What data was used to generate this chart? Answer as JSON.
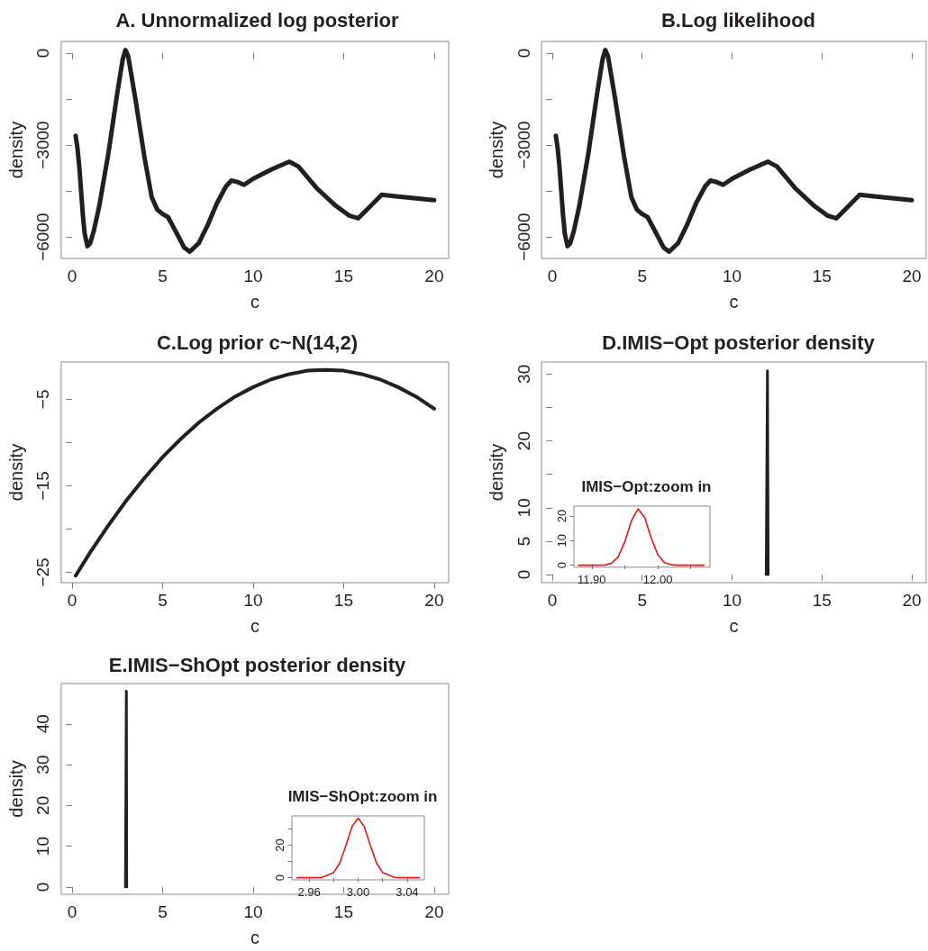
{
  "chart_data": [
    {
      "type": "line",
      "title": "A. Unnormalized log posterior",
      "xlabel": "c",
      "ylabel": "density",
      "marker": "none",
      "x": [
        0.2,
        0.3,
        0.4,
        0.5,
        0.6,
        0.7,
        0.85,
        1.0,
        1.2,
        1.5,
        2.0,
        2.5,
        2.8,
        2.95,
        3.1,
        3.5,
        4.0,
        4.4,
        4.7,
        5.0,
        5.3,
        5.8,
        6.2,
        6.5,
        7.0,
        7.5,
        8.0,
        8.5,
        8.8,
        9.1,
        9.5,
        10,
        11,
        12,
        12.5,
        13.5,
        14.5,
        15.3,
        15.8,
        16.3,
        17.1,
        18,
        19,
        20
      ],
      "series": [
        {
          "color": "#231f20",
          "values": [
            -2700,
            -3100,
            -3700,
            -4500,
            -5300,
            -5900,
            -6300,
            -6200,
            -5800,
            -5000,
            -3300,
            -1300,
            -200,
            100,
            -100,
            -1500,
            -3400,
            -4700,
            -5100,
            -5250,
            -5350,
            -5900,
            -6350,
            -6480,
            -6200,
            -5600,
            -4900,
            -4350,
            -4160,
            -4200,
            -4300,
            -4100,
            -3800,
            -3540,
            -3700,
            -4400,
            -4950,
            -5300,
            -5390,
            -5100,
            -4620,
            -4680,
            -4740,
            -4800
          ]
        }
      ],
      "xlim": [
        -0.6,
        20.8
      ],
      "xticks": [
        0,
        5,
        10,
        15,
        20
      ],
      "ylim": [
        -6700,
        380
      ],
      "yticks": [
        {
          "value": -6000,
          "label": "−6000"
        },
        {
          "value": -4500,
          "label": null
        },
        {
          "value": -3000,
          "label": "−3000"
        },
        {
          "value": -1500,
          "label": null
        },
        0
      ]
    },
    {
      "type": "line",
      "title": "B.Log likelihood",
      "xlabel": "c",
      "ylabel": "density",
      "marker": "none",
      "x": [
        0.2,
        0.3,
        0.4,
        0.5,
        0.6,
        0.7,
        0.85,
        1.0,
        1.2,
        1.5,
        2.0,
        2.5,
        2.8,
        2.95,
        3.1,
        3.5,
        4.0,
        4.4,
        4.7,
        5.0,
        5.3,
        5.8,
        6.2,
        6.5,
        7.0,
        7.5,
        8.0,
        8.5,
        8.8,
        9.1,
        9.5,
        10,
        11,
        12,
        12.5,
        13.5,
        14.5,
        15.3,
        15.8,
        16.3,
        17.1,
        18,
        19,
        20
      ],
      "series": [
        {
          "color": "#231f20",
          "values": [
            -2700,
            -3100,
            -3700,
            -4500,
            -5300,
            -5900,
            -6300,
            -6200,
            -5800,
            -5000,
            -3300,
            -1300,
            -200,
            100,
            -100,
            -1500,
            -3400,
            -4700,
            -5100,
            -5250,
            -5350,
            -5900,
            -6350,
            -6480,
            -6200,
            -5600,
            -4900,
            -4350,
            -4160,
            -4200,
            -4300,
            -4100,
            -3800,
            -3540,
            -3700,
            -4400,
            -4950,
            -5300,
            -5390,
            -5100,
            -4620,
            -4680,
            -4740,
            -4800
          ]
        }
      ],
      "xlim": [
        -0.6,
        20.8
      ],
      "xticks": [
        0,
        5,
        10,
        15,
        20
      ],
      "ylim": [
        -6700,
        380
      ],
      "yticks": [
        {
          "value": -6000,
          "label": "−6000"
        },
        {
          "value": -4500,
          "label": null
        },
        {
          "value": -3000,
          "label": "−3000"
        },
        {
          "value": -1500,
          "label": null
        },
        0
      ]
    },
    {
      "type": "line",
      "title": "C.Log prior c~N(14,2)",
      "xlabel": "c",
      "ylabel": "density",
      "marker": "none",
      "x": [
        0.2,
        1,
        2,
        3,
        4,
        5,
        6,
        7,
        8,
        9,
        10,
        11,
        12,
        13,
        14,
        15,
        16,
        17,
        18,
        19,
        20
      ],
      "series": [
        {
          "color": "#231f20",
          "values": [
            -25.4,
            -22.7,
            -19.6,
            -16.7,
            -14.1,
            -11.7,
            -9.6,
            -7.7,
            -6.1,
            -4.7,
            -3.6,
            -2.7,
            -2.1,
            -1.7,
            -1.6,
            -1.7,
            -2.1,
            -2.7,
            -3.6,
            -4.7,
            -6.1
          ]
        }
      ],
      "xlim": [
        -0.6,
        20.8
      ],
      "xticks": [
        0,
        5,
        10,
        15,
        20
      ],
      "ylim": [
        -26.2,
        -0.7
      ],
      "yticks": [
        {
          "value": -25,
          "label": "−25"
        },
        {
          "value": -20,
          "label": null
        },
        {
          "value": -15,
          "label": "−15"
        },
        {
          "value": -10,
          "label": null
        },
        {
          "value": -5,
          "label": "−5"
        }
      ]
    },
    {
      "type": "line",
      "title": "D.IMIS−Opt posterior density",
      "xlabel": "c",
      "ylabel": "density",
      "marker": "none",
      "x": [
        11.9,
        11.93,
        11.97,
        12.01,
        12.04
      ],
      "series": [
        {
          "color": "#231f20",
          "values": [
            0,
            0,
            30.5,
            0,
            0
          ]
        }
      ],
      "xlim": [
        -0.6,
        20.8
      ],
      "xticks": [
        0,
        5,
        10,
        15,
        20
      ],
      "ylim": [
        -1.2,
        31.8
      ],
      "yticks": [
        0,
        5,
        10,
        {
          "value": 15,
          "label": null
        },
        20,
        {
          "value": 25,
          "label": null
        },
        30
      ]
    },
    {
      "type": "line",
      "title": "IMIS−Opt:zoom in",
      "marker": "none",
      "x": [
        11.88,
        11.9,
        11.92,
        11.93,
        11.94,
        11.95,
        11.96,
        11.97,
        11.98,
        11.99,
        12.0,
        12.01,
        12.02,
        12.03,
        12.07
      ],
      "series": [
        {
          "color": "#e8141c",
          "values": [
            0,
            0,
            0.1,
            0.8,
            3.4,
            9.5,
            18,
            22.9,
            19.5,
            11.1,
            4.3,
            1.1,
            0.2,
            0,
            0
          ]
        }
      ],
      "xlim": [
        11.873,
        12.079
      ],
      "xticks": [
        {
          "value": 11.9,
          "label": "11.90"
        },
        {
          "value": 11.95,
          "label": null
        },
        {
          "value": 12.0,
          "label": "12.00"
        },
        {
          "value": 12.05,
          "label": null
        }
      ],
      "ylim": [
        -0.8,
        24
      ],
      "yticks": [
        0,
        10,
        20
      ]
    },
    {
      "type": "line",
      "title": "E.IMIS−ShOpt posterior density",
      "xlabel": "c",
      "ylabel": "density",
      "marker": "none",
      "x": [
        2.95,
        2.98,
        3.0,
        3.02,
        3.05
      ],
      "series": [
        {
          "color": "#231f20",
          "values": [
            0,
            0,
            48,
            0,
            0
          ]
        }
      ],
      "xlim": [
        -0.6,
        20.8
      ],
      "xticks": [
        0,
        5,
        10,
        15,
        20
      ],
      "ylim": [
        -1.8,
        49.9
      ],
      "yticks": [
        0,
        10,
        20,
        30,
        40
      ]
    },
    {
      "type": "line",
      "title": "IMIS−ShOpt:zoom in",
      "marker": "none",
      "x": [
        2.95,
        2.97,
        2.98,
        2.985,
        2.99,
        2.995,
        3.0,
        3.005,
        3.01,
        3.015,
        3.02,
        3.03,
        3.05
      ],
      "series": [
        {
          "color": "#e8141c",
          "values": [
            0,
            0.1,
            3.1,
            9.1,
            19.8,
            31.5,
            36.7,
            31.5,
            19.8,
            9.1,
            3.1,
            0.1,
            0
          ]
        }
      ],
      "xlim": [
        2.946,
        3.054
      ],
      "xticks": [
        2.96,
        {
          "value": 2.98,
          "label": null
        },
        {
          "value": 3.0,
          "label": "3.00"
        },
        {
          "value": 3.02,
          "label": null
        },
        3.04
      ],
      "ylim": [
        -1.3,
        38.1
      ],
      "yticks": [
        0,
        {
          "value": 10,
          "label": null
        },
        20,
        {
          "value": 30,
          "label": null
        }
      ]
    }
  ]
}
